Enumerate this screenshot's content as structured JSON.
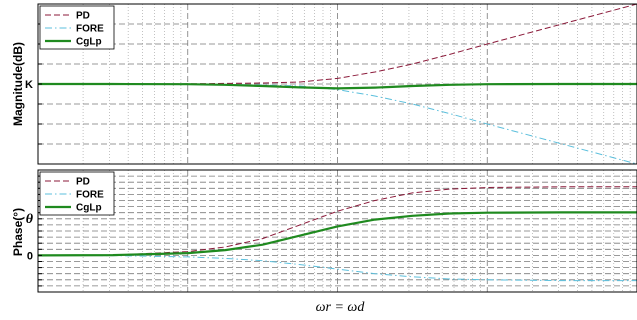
{
  "chart_data": [
    {
      "type": "line",
      "panel": "magnitude",
      "ylabel": "Magnitude(dB)",
      "xscale": "log",
      "xlabel": "",
      "xlim": [
        -2,
        2
      ],
      "ylim": [
        -4,
        4
      ],
      "yticks": [
        {
          "value": 0,
          "label": "K"
        }
      ],
      "grid": true,
      "legend": "top-left",
      "x": [
        -2,
        -1.5,
        -1,
        -0.75,
        -0.5,
        -0.25,
        0,
        0.25,
        0.5,
        0.75,
        1,
        1.5,
        2
      ],
      "series": [
        {
          "name": "PD",
          "color": "#8b1a3a",
          "style": "dashed",
          "values": [
            0,
            0,
            0.01,
            0.03,
            0.05,
            0.1,
            0.28,
            0.6,
            1.0,
            1.48,
            2.0,
            3.0,
            4.0
          ]
        },
        {
          "name": "FORE",
          "color": "#5bbfdc",
          "style": "dashdot",
          "values": [
            0,
            0,
            -0.01,
            -0.03,
            -0.05,
            -0.1,
            -0.28,
            -0.6,
            -1.0,
            -1.48,
            -2.0,
            -3.0,
            -4.0
          ]
        },
        {
          "name": "CgLp",
          "color": "#1f8a1f",
          "style": "solid",
          "values": [
            0,
            0,
            -0.01,
            -0.04,
            -0.1,
            -0.17,
            -0.22,
            -0.18,
            -0.1,
            -0.04,
            -0.01,
            0,
            0
          ]
        }
      ]
    },
    {
      "type": "line",
      "panel": "phase",
      "ylabel": "Phase(°)",
      "xscale": "log",
      "xlabel": "ωr = ωd",
      "xlim": [
        -2,
        2
      ],
      "ylim": [
        -2.4,
        5.6
      ],
      "yticks": [
        {
          "value": 0,
          "label": "0"
        },
        {
          "value": 2.4,
          "label": "θ"
        }
      ],
      "grid": true,
      "legend": "top-left",
      "x": [
        -2,
        -1.5,
        -1,
        -0.75,
        -0.5,
        -0.25,
        0,
        0.25,
        0.5,
        0.75,
        1,
        1.5,
        2
      ],
      "series": [
        {
          "name": "PD",
          "color": "#8b1a3a",
          "style": "dashed",
          "values": [
            0,
            0.02,
            0.25,
            0.55,
            1.1,
            2.0,
            2.9,
            3.6,
            4.1,
            4.35,
            4.45,
            4.5,
            4.5
          ]
        },
        {
          "name": "FORE",
          "color": "#5bbfdc",
          "style": "dashdot",
          "values": [
            0,
            -0.01,
            -0.1,
            -0.2,
            -0.35,
            -0.6,
            -0.9,
            -1.2,
            -1.4,
            -1.55,
            -1.6,
            -1.65,
            -1.65
          ]
        },
        {
          "name": "CgLp",
          "color": "#1f8a1f",
          "style": "solid",
          "values": [
            0,
            0.02,
            0.15,
            0.35,
            0.7,
            1.3,
            1.9,
            2.35,
            2.6,
            2.75,
            2.8,
            2.82,
            2.82
          ]
        }
      ]
    }
  ]
}
